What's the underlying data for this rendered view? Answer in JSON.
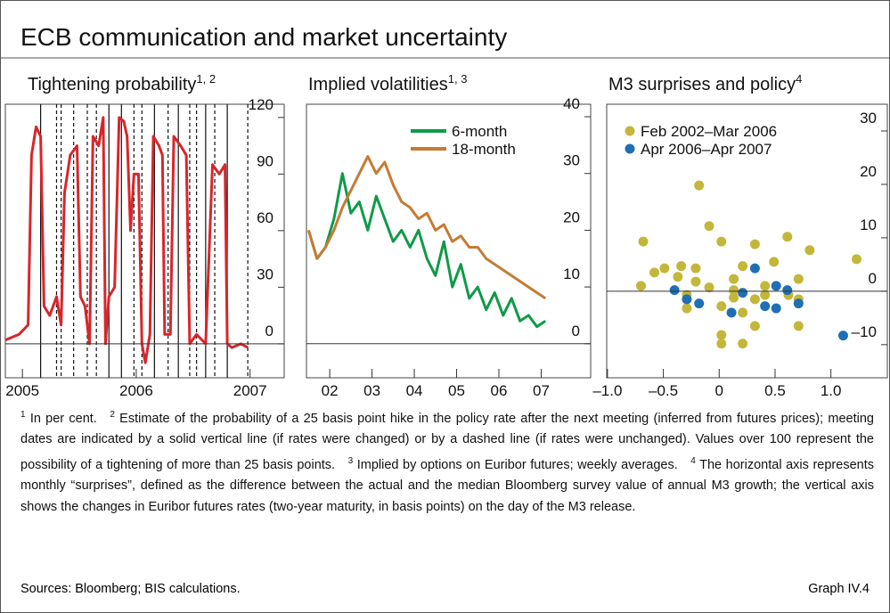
{
  "header": {
    "title": "ECB communication and market uncertainty"
  },
  "chart_data": [
    {
      "type": "line",
      "title": "Tightening probability",
      "title_notes": "1, 2",
      "xlim": [
        2004.85,
        2007.3
      ],
      "xticks": [
        2005,
        2006,
        2007
      ],
      "ylim": [
        -18,
        127
      ],
      "yticks": [
        0,
        30,
        60,
        90,
        120
      ],
      "zero_line": true,
      "meetings": {
        "rate_changed": [
          2005.16,
          2005.76,
          2005.87,
          2006.16,
          2006.37,
          2006.61,
          2006.8
        ],
        "unchanged": [
          2005.3,
          2005.34,
          2005.45,
          2005.57,
          2005.65,
          2005.98,
          2006.05,
          2006.28,
          2006.47,
          2006.53,
          2006.69,
          2006.98
        ]
      },
      "series": [
        {
          "color": "#d7262b",
          "x": [
            2004.85,
            2004.97,
            2005.05,
            2005.08,
            2005.12,
            2005.16,
            2005.19,
            2005.24,
            2005.3,
            2005.34,
            2005.37,
            2005.42,
            2005.48,
            2005.51,
            2005.55,
            2005.59,
            2005.62,
            2005.67,
            2005.71,
            2005.73,
            2005.76,
            2005.81,
            2005.85,
            2005.89,
            2005.92,
            2005.95,
            2005.98,
            2006.02,
            2006.05,
            2006.08,
            2006.12,
            2006.15,
            2006.2,
            2006.23,
            2006.25,
            2006.3,
            2006.33,
            2006.39,
            2006.44,
            2006.47,
            2006.53,
            2006.61,
            2006.67,
            2006.73,
            2006.78,
            2006.8,
            2006.84,
            2006.92,
            2006.98
          ],
          "values": [
            2,
            5,
            10,
            100,
            115,
            110,
            20,
            15,
            25,
            10,
            80,
            100,
            105,
            25,
            20,
            0,
            110,
            105,
            120,
            0,
            25,
            30,
            120,
            118,
            110,
            60,
            90,
            90,
            0,
            -10,
            5,
            110,
            105,
            100,
            5,
            5,
            110,
            105,
            100,
            0,
            5,
            0,
            95,
            90,
            95,
            0,
            -2,
            0,
            -2
          ]
        }
      ]
    },
    {
      "type": "line",
      "title": "Implied volatilities",
      "title_notes": "1, 3",
      "xlim": [
        2001.95,
        2008.67
      ],
      "xticks": [
        {
          "value": 2002.5,
          "label": "02"
        },
        {
          "value": 2003.5,
          "label": "03"
        },
        {
          "value": 2004.5,
          "label": "04"
        },
        {
          "value": 2005.5,
          "label": "05"
        },
        {
          "value": 2006.5,
          "label": "06"
        },
        {
          "value": 2007.5,
          "label": "07"
        }
      ],
      "ylim": [
        -6,
        42.2
      ],
      "yticks": [
        0,
        10,
        20,
        30,
        40
      ],
      "zero_line": true,
      "legend": "upper center",
      "x": [
        2002.0,
        2002.2,
        2002.4,
        2002.6,
        2002.8,
        2003.0,
        2003.2,
        2003.4,
        2003.6,
        2003.8,
        2004.0,
        2004.2,
        2004.4,
        2004.6,
        2004.8,
        2005.0,
        2005.2,
        2005.4,
        2005.6,
        2005.8,
        2006.0,
        2006.2,
        2006.4,
        2006.6,
        2006.8,
        2007.0,
        2007.2,
        2007.4,
        2007.6
      ],
      "series": [
        {
          "name": "6-month",
          "color": "#0f9a48",
          "values": [
            20,
            15,
            17,
            22,
            30,
            23,
            25,
            20,
            26,
            22,
            18,
            20,
            17,
            20,
            15,
            12,
            18,
            10,
            14,
            8,
            10,
            6,
            9,
            5,
            8,
            4,
            5,
            3,
            4
          ]
        },
        {
          "name": "18-month",
          "color": "#c57b33",
          "values": [
            20,
            15,
            17,
            20,
            24,
            27,
            30,
            33,
            30,
            32,
            28,
            25,
            24,
            22,
            23,
            20,
            21,
            18,
            19,
            17,
            17,
            15,
            14,
            13,
            12,
            11,
            10,
            9,
            8
          ]
        }
      ]
    },
    {
      "type": "scatter",
      "title": "M3 surprises and policy",
      "title_notes": "4",
      "xlim": [
        -1.007,
        1.505
      ],
      "xticks": [
        {
          "value": -1,
          "label": "–1.0"
        },
        {
          "value": -0.5,
          "label": "–0.5"
        },
        0,
        0.5,
        {
          "value": 1,
          "label": "1.0"
        }
      ],
      "ylim": [
        -16.2,
        35
      ],
      "yticks": [
        {
          "value": -10,
          "label": "–10"
        },
        0,
        10,
        20,
        30
      ],
      "zero_line": true,
      "legend": "upper left",
      "series": [
        {
          "name": "Feb 2002–Mar 2006",
          "color": "#c2b73a",
          "x": [
            -0.68,
            -0.7,
            -0.58,
            -0.49,
            -0.34,
            -0.21,
            -0.37,
            -0.21,
            -0.09,
            -0.29,
            -0.29,
            -0.18,
            -0.09,
            0.02,
            0.02,
            0.02,
            0.02,
            0.13,
            0.13,
            0.13,
            0.21,
            0.21,
            0.21,
            0.32,
            0.32,
            0.41,
            0.41,
            0.32,
            0.49,
            0.61,
            0.62,
            0.71,
            0.71,
            0.71,
            0.81,
            1.23
          ],
          "values": [
            9.3,
            1,
            3.5,
            4.3,
            4.7,
            4.3,
            2.7,
            1.8,
            0.7,
            -3.2,
            -0.7,
            19.8,
            12.2,
            9.3,
            -2.8,
            -8.2,
            -9.8,
            2.3,
            0.2,
            -1.2,
            4.7,
            -4,
            -9.8,
            -6.5,
            -1.5,
            1,
            -0.7,
            8.8,
            5.5,
            10.2,
            -0.7,
            2.3,
            -1.5,
            -6.5,
            7.7,
            6
          ]
        },
        {
          "name": "Apr 2006–Apr 2007",
          "color": "#1f6fb5",
          "x": [
            -0.4,
            -0.29,
            -0.18,
            0.11,
            0.21,
            0.32,
            0.41,
            0.51,
            0.51,
            0.61,
            0.71,
            1.11
          ],
          "values": [
            0.2,
            -1.5,
            -2.3,
            -4,
            -0.3,
            4.3,
            -2.8,
            1,
            -3.2,
            0.2,
            -2.3,
            -8.3
          ]
        }
      ]
    }
  ],
  "footnotes": [
    {
      "marker": "1",
      "text": "In per cent."
    },
    {
      "marker": "2",
      "text": "Estimate of the probability of a 25 basis point hike in the policy rate after the next meeting (inferred from futures prices); meeting dates are indicated by a solid vertical line (if rates were changed) or by a dashed line (if rates were unchanged). Values over 100 represent the possibility of a tightening of more than 25 basis points."
    },
    {
      "marker": "3",
      "text": "Implied by options on Euribor futures; weekly averages."
    },
    {
      "marker": "4",
      "text": "The horizontal axis represents monthly “surprises”, defined as the difference between the actual and the median Bloomberg survey value of annual M3 growth; the vertical axis shows the changes in Euribor futures rates (two-year maturity, in basis points) on the day of the M3 release."
    }
  ],
  "footer": {
    "sources": "Sources: Bloomberg; BIS calculations.",
    "graph_id": "Graph IV.4"
  }
}
